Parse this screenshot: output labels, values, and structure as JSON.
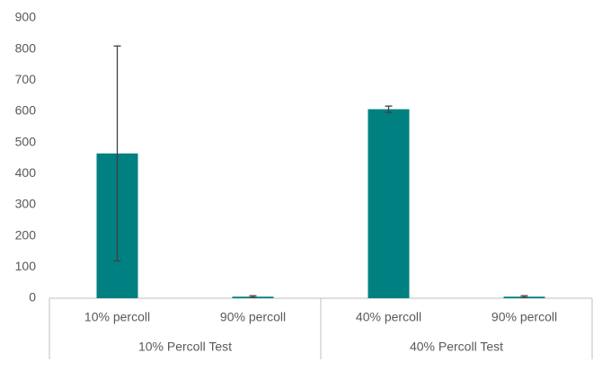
{
  "chart_data": {
    "type": "bar",
    "color": "#008080",
    "error_color": "#404040",
    "groups": [
      {
        "label": "10% Percoll Test",
        "categories": [
          "10% percoll",
          "90% percoll"
        ],
        "values": [
          465,
          5
        ],
        "errors": [
          345,
          3
        ]
      },
      {
        "label": "40% Percoll Test",
        "categories": [
          "40% percoll",
          "90% percoll"
        ],
        "values": [
          607,
          5
        ],
        "errors": [
          10,
          3
        ]
      }
    ],
    "ylim": [
      0,
      900
    ],
    "yticks": [
      0,
      100,
      200,
      300,
      400,
      500,
      600,
      700,
      800,
      900
    ],
    "grid": false
  }
}
